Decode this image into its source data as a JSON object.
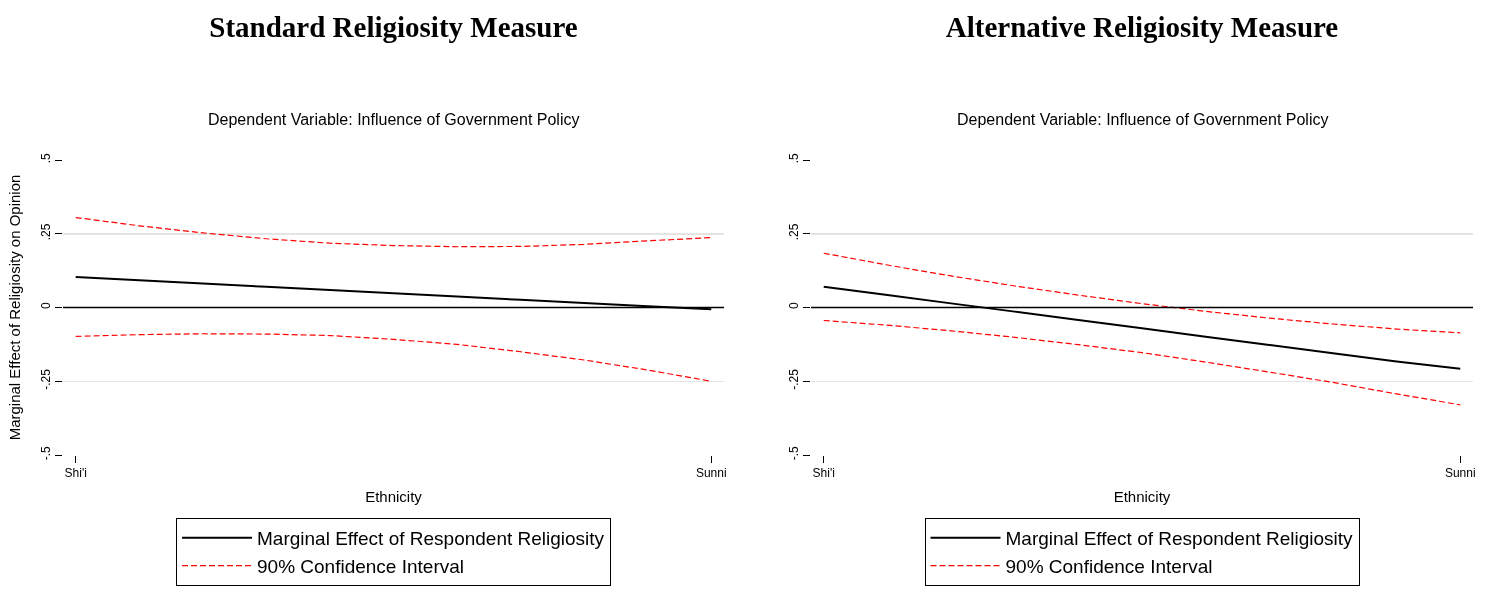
{
  "chart_data": [
    {
      "type": "line",
      "title": "Standard Religiosity Measure",
      "subtitle": "Dependent Variable: Influence of Government Policy",
      "xlabel": "Ethnicity",
      "ylabel": "Marginal Effect of Religiosity on Opinion",
      "categories": [
        "Shi'i",
        null,
        null,
        null,
        null,
        null,
        null,
        null,
        null,
        null,
        "Sunni"
      ],
      "ylim": [
        -0.5,
        0.5
      ],
      "yticks": [
        {
          "value": -0.5,
          "label": "-.5"
        },
        {
          "value": -0.25,
          "label": "-.25"
        },
        0,
        {
          "value": 0.25,
          "label": ".25"
        },
        {
          "value": 0.5,
          "label": ".5"
        }
      ],
      "grid": "y",
      "legend": "bottom",
      "marker": "none",
      "ref_lines": [
        {
          "axis": "y",
          "value": 0,
          "color": "#000000"
        }
      ],
      "series": [
        {
          "name": "Marginal Effect of Respondent Religiosity",
          "color": "#000000",
          "line_style": "solid",
          "values": [
            0.103,
            0.092,
            0.081,
            0.07,
            0.059,
            0.048,
            0.037,
            0.026,
            0.015,
            0.004,
            -0.006
          ]
        },
        {
          "name": "90% Confidence Interval",
          "color": "#ff0000",
          "line_style": "dashed",
          "values": [
            0.305,
            0.277,
            0.253,
            0.233,
            0.218,
            0.21,
            0.206,
            0.207,
            0.214,
            0.226,
            0.237
          ]
        },
        {
          "color": "#ff0000",
          "line_style": "dashed",
          "values": [
            -0.098,
            -0.092,
            -0.089,
            -0.09,
            -0.095,
            -0.108,
            -0.125,
            -0.15,
            -0.178,
            -0.212,
            -0.25
          ]
        }
      ]
    },
    {
      "type": "line",
      "title": "Alternative Religiosity Measure",
      "subtitle": "Dependent Variable: Influence of Government Policy",
      "xlabel": "Ethnicity",
      "categories": [
        "Shi'i",
        null,
        null,
        null,
        null,
        null,
        null,
        null,
        null,
        null,
        "Sunni"
      ],
      "ylim": [
        -0.5,
        0.5
      ],
      "yticks": [
        {
          "value": -0.5,
          "label": "-.5"
        },
        {
          "value": -0.25,
          "label": "-.25"
        },
        0,
        {
          "value": 0.25,
          "label": ".25"
        },
        {
          "value": 0.5,
          "label": ".5"
        }
      ],
      "grid": "y",
      "legend": "bottom",
      "marker": "none",
      "ref_lines": [
        {
          "axis": "y",
          "value": 0,
          "color": "#000000"
        }
      ],
      "series": [
        {
          "name": "Marginal Effect of Respondent Religiosity",
          "color": "#000000",
          "line_style": "solid",
          "values": [
            0.07,
            0.042,
            0.014,
            -0.014,
            -0.042,
            -0.07,
            -0.099,
            -0.127,
            -0.155,
            -0.183,
            -0.208
          ]
        },
        {
          "name": "90% Confidence Interval",
          "color": "#ff0000",
          "line_style": "dashed",
          "values": [
            0.184,
            0.144,
            0.107,
            0.073,
            0.042,
            0.013,
            -0.013,
            -0.036,
            -0.056,
            -0.073,
            -0.086
          ]
        },
        {
          "color": "#ff0000",
          "line_style": "dashed",
          "values": [
            -0.044,
            -0.06,
            -0.079,
            -0.101,
            -0.126,
            -0.153,
            -0.185,
            -0.219,
            -0.254,
            -0.293,
            -0.33
          ]
        }
      ]
    }
  ]
}
